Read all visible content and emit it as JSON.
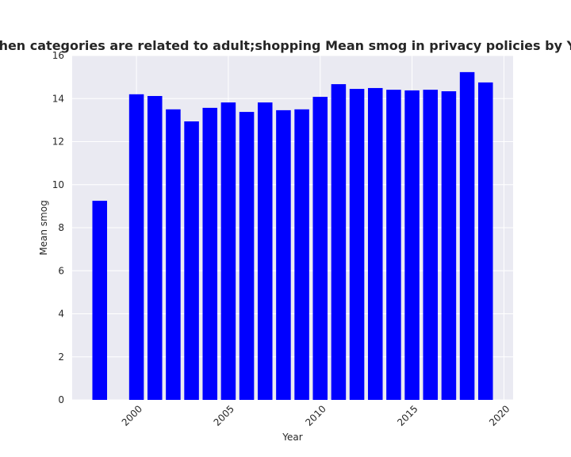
{
  "chart_data": {
    "type": "bar",
    "title": "when categories are related to adult;shopping Mean smog in privacy policies by Year",
    "xlabel": "Year",
    "ylabel": "Mean smog",
    "x": [
      1998,
      2000,
      2001,
      2002,
      2003,
      2004,
      2005,
      2006,
      2007,
      2008,
      2009,
      2010,
      2011,
      2012,
      2013,
      2014,
      2015,
      2016,
      2017,
      2018,
      2019
    ],
    "values": [
      9.25,
      14.2,
      14.12,
      13.5,
      12.94,
      13.57,
      13.82,
      13.38,
      13.82,
      13.46,
      13.5,
      14.08,
      14.67,
      14.45,
      14.49,
      14.41,
      14.38,
      14.41,
      14.34,
      15.23,
      14.75
    ],
    "color": "#0000ff",
    "xlim": [
      1996.5,
      2020.5
    ],
    "xticks": [
      2000,
      2005,
      2010,
      2015,
      2020
    ],
    "ylim": [
      0,
      16
    ],
    "yticks": [
      0,
      2,
      4,
      6,
      8,
      10,
      12,
      14,
      16
    ],
    "grid": true
  }
}
